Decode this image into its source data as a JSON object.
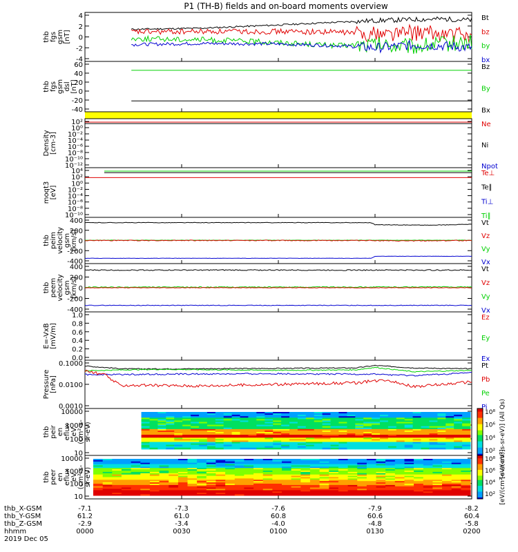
{
  "title": "P1 (TH-B) fields and on-board moments overview",
  "colors": {
    "black": "#000000",
    "red": "#e00000",
    "green": "#00d000",
    "blue": "#0000d0",
    "yellow": "#ffff00",
    "bright_green": "#00e000"
  },
  "chart_data": [
    {
      "type": "line",
      "ylabel_lines": [
        "thb",
        "fgs",
        "gsm",
        "[nT]"
      ],
      "yticks": [
        "4",
        "2",
        "0",
        "-2",
        "-4"
      ],
      "ylim": [
        -4,
        4
      ],
      "legend": [
        {
          "label": "Bt",
          "color": "#000000"
        },
        {
          "label": "bz",
          "color": "#e00000"
        },
        {
          "label": "by",
          "color": "#00d000"
        },
        {
          "label": "bx",
          "color": "#0000d0"
        }
      ],
      "series": [
        {
          "name": "Bt",
          "color": "#000000",
          "x": [
            0.12,
            0.3,
            0.5,
            0.65,
            0.75,
            0.85,
            0.92,
            1.0
          ],
          "y": [
            1.4,
            1.6,
            2.2,
            2.7,
            3.0,
            3.2,
            3.3,
            3.1
          ],
          "noise": 0.15
        },
        {
          "name": "bz",
          "color": "#e00000",
          "x": [
            0.12,
            0.3,
            0.5,
            0.65,
            0.75,
            0.85,
            0.92,
            1.0
          ],
          "y": [
            0.9,
            1.0,
            1.0,
            0.9,
            0.6,
            0.8,
            0.5,
            0.3
          ],
          "noise": 0.5
        },
        {
          "name": "by",
          "color": "#00d000",
          "x": [
            0.12,
            0.3,
            0.5,
            0.65,
            0.75,
            0.85,
            0.92,
            1.0
          ],
          "y": [
            -0.3,
            -0.5,
            -1.0,
            -1.6,
            -1.5,
            -1.8,
            -1.3,
            -1.0
          ],
          "noise": 0.5
        },
        {
          "name": "bx",
          "color": "#0000d0",
          "x": [
            0.12,
            0.3,
            0.5,
            0.65,
            0.75,
            0.85,
            0.92,
            1.0
          ],
          "y": [
            -1.4,
            -1.2,
            -1.3,
            -1.6,
            -2.0,
            -1.5,
            -1.6,
            -2.0
          ],
          "noise": 0.3
        }
      ]
    },
    {
      "type": "line",
      "ylabel_lines": [
        "thb",
        "fgs",
        "gsm",
        "dsl",
        "[nT]"
      ],
      "yticks": [
        "60",
        "40",
        "20",
        "0",
        "-20",
        "-40"
      ],
      "ylim": [
        -45,
        65
      ],
      "legend": [
        {
          "label": "Bz",
          "color": "#000000"
        },
        {
          "label": "By",
          "color": "#00d000"
        },
        {
          "label": "Bx",
          "color": "#000000"
        }
      ],
      "series": [
        {
          "name": "By",
          "color": "#00d000",
          "x": [
            0.12,
            1.0
          ],
          "y": [
            50,
            50
          ],
          "noise": 0.0
        },
        {
          "name": "Bx",
          "color": "#000000",
          "x": [
            0.12,
            1.0
          ],
          "y": [
            -25,
            -25
          ],
          "noise": 0.0
        }
      ]
    },
    {
      "type": "line",
      "ylabel_lines": [
        "Density",
        "[cm-3]"
      ],
      "yticks": [
        "10²",
        "10⁰",
        "10⁻²",
        "10⁻⁴",
        "10⁻⁶",
        "10⁻⁸",
        "10⁻¹⁰",
        "10⁻¹²"
      ],
      "ylim": [
        0,
        1
      ],
      "legend": [
        {
          "label": "Ne",
          "color": "#e00000"
        },
        {
          "label": "Ni",
          "color": "#000000"
        },
        {
          "label": "Npot",
          "color": "#0000d0"
        }
      ],
      "series": [
        {
          "name": "Ne",
          "color": "#e00000",
          "x": [
            0,
            1.0
          ],
          "y": [
            0.93,
            0.93
          ],
          "noise": 0.0
        },
        {
          "name": "Ni",
          "color": "#000000",
          "x": [
            0,
            1.0
          ],
          "y": [
            0.9,
            0.9
          ],
          "noise": 0.0
        }
      ]
    },
    {
      "type": "line",
      "ylabel_lines": [
        "moqt3",
        "[eV]"
      ],
      "yticks": [
        "10⁴",
        "10²",
        "10⁰",
        "10⁻²",
        "10⁻⁴",
        "10⁻⁶",
        "10⁻⁸",
        "10⁻¹⁰"
      ],
      "ylim": [
        0,
        1
      ],
      "legend": [
        {
          "label": "Te⊥",
          "color": "#e00000"
        },
        {
          "label": "Te∥",
          "color": "#000000"
        },
        {
          "label": "Ti⊥",
          "color": "#0000d0"
        },
        {
          "label": "Ti∥",
          "color": "#00d000"
        }
      ],
      "series": [
        {
          "name": "Ti∥",
          "color": "#00d000",
          "x": [
            0.05,
            1.0
          ],
          "y": [
            0.93,
            0.93
          ],
          "noise": 0.0
        },
        {
          "name": "Te∥",
          "color": "#000000",
          "x": [
            0.05,
            1.0
          ],
          "y": [
            0.9,
            0.9
          ],
          "noise": 0.0
        },
        {
          "name": "Te⊥",
          "color": "#e00000",
          "x": [
            0,
            1.0
          ],
          "y": [
            0.8,
            0.8
          ],
          "noise": 0.0
        }
      ]
    },
    {
      "type": "line",
      "ylabel_lines": [
        "thb",
        "peim",
        "velocity",
        "gsm",
        "[km/s]"
      ],
      "yticks": [
        "400",
        "200",
        "0",
        "-200",
        "-400"
      ],
      "ylim": [
        -400,
        400
      ],
      "legend": [
        {
          "label": "Vt",
          "color": "#000000"
        },
        {
          "label": "Vz",
          "color": "#e00000"
        },
        {
          "label": "Vy",
          "color": "#00d000"
        },
        {
          "label": "Vx",
          "color": "#0000d0"
        }
      ],
      "series": [
        {
          "name": "Vt",
          "color": "#000000",
          "x": [
            0,
            0.74,
            0.75,
            0.9,
            1.0
          ],
          "y": [
            350,
            350,
            310,
            300,
            320
          ],
          "noise": 5
        },
        {
          "name": "Vy",
          "color": "#00d000",
          "x": [
            0,
            1.0
          ],
          "y": [
            5,
            5
          ],
          "noise": 3
        },
        {
          "name": "Vz",
          "color": "#e00000",
          "x": [
            0,
            0.74,
            0.8,
            0.9,
            1.0
          ],
          "y": [
            0,
            0,
            -10,
            -5,
            0
          ],
          "noise": 8
        },
        {
          "name": "Vx",
          "color": "#0000d0",
          "x": [
            0,
            0.74,
            0.75,
            1.0
          ],
          "y": [
            -350,
            -350,
            -310,
            -310
          ],
          "noise": 3
        }
      ]
    },
    {
      "type": "line",
      "ylabel_lines": [
        "thb",
        "peem",
        "velocity",
        "gsm",
        "[km/s]"
      ],
      "yticks": [
        "400",
        "200",
        "0",
        "-200",
        "-400"
      ],
      "ylim": [
        -400,
        400
      ],
      "legend": [
        {
          "label": "Vt",
          "color": "#000000"
        },
        {
          "label": "Vz",
          "color": "#e00000"
        },
        {
          "label": "Vy",
          "color": "#00d000"
        },
        {
          "label": "Vx",
          "color": "#0000d0"
        }
      ],
      "series": [
        {
          "name": "Vt",
          "color": "#000000",
          "x": [
            0,
            1.0
          ],
          "y": [
            330,
            330
          ],
          "noise": 10
        },
        {
          "name": "Vy",
          "color": "#00d000",
          "x": [
            0,
            1.0
          ],
          "y": [
            10,
            15
          ],
          "noise": 8
        },
        {
          "name": "Vz",
          "color": "#e00000",
          "x": [
            0,
            1.0
          ],
          "y": [
            0,
            0
          ],
          "noise": 5
        },
        {
          "name": "Vx",
          "color": "#0000d0",
          "x": [
            0,
            1.0
          ],
          "y": [
            -330,
            -330
          ],
          "noise": 6
        }
      ]
    },
    {
      "type": "line",
      "ylabel_lines": [
        "E=-VxB",
        "[mV/m]"
      ],
      "yticks": [
        "1.0",
        "0.8",
        "0.6",
        "0.4",
        "0.2",
        "0.0"
      ],
      "ylim": [
        0,
        1
      ],
      "legend": [
        {
          "label": "Ez",
          "color": "#e00000"
        },
        {
          "label": "Ey",
          "color": "#00d000"
        },
        {
          "label": "Ex",
          "color": "#0000d0"
        }
      ],
      "series": []
    },
    {
      "type": "line",
      "ylabel_lines": [
        "Pressure",
        "[nPa]"
      ],
      "yticks": [
        "0.1000",
        "0.0100",
        "0.0010"
      ],
      "ylim": [
        0,
        1
      ],
      "legend": [
        {
          "label": "Pt",
          "color": "#000000"
        },
        {
          "label": "Pb",
          "color": "#e00000"
        },
        {
          "label": "Pe",
          "color": "#00d000"
        },
        {
          "label": "Pi",
          "color": "#0000d0"
        }
      ],
      "series": [
        {
          "name": "Pt",
          "color": "#000000",
          "x": [
            0,
            0.1,
            0.2,
            0.5,
            0.7,
            0.75,
            0.85,
            1.0
          ],
          "y": [
            0.88,
            0.82,
            0.82,
            0.83,
            0.84,
            0.89,
            0.84,
            0.82
          ],
          "noise": 0.01
        },
        {
          "name": "Pe",
          "color": "#00d000",
          "x": [
            0,
            0.1,
            0.2,
            0.5,
            0.7,
            0.75,
            0.85,
            1.0
          ],
          "y": [
            0.78,
            0.8,
            0.81,
            0.79,
            0.8,
            0.85,
            0.76,
            0.79
          ],
          "noise": 0.01
        },
        {
          "name": "Pi",
          "color": "#0000d0",
          "x": [
            0,
            0.2,
            0.5,
            0.7,
            0.75,
            0.85,
            1.0
          ],
          "y": [
            0.7,
            0.71,
            0.72,
            0.71,
            0.71,
            0.68,
            0.74
          ],
          "noise": 0.015
        },
        {
          "name": "Pb",
          "color": "#e00000",
          "x": [
            0,
            0.05,
            0.09,
            0.12,
            0.3,
            0.5,
            0.7,
            0.78,
            0.85,
            1.0
          ],
          "y": [
            0.78,
            0.7,
            0.48,
            0.48,
            0.47,
            0.5,
            0.53,
            0.6,
            0.45,
            0.55
          ],
          "noise": 0.03
        }
      ]
    },
    {
      "type": "heatmap",
      "ylabel_lines": [
        "thb",
        "peir",
        "en",
        "eflux",
        "eV",
        "(cm²-s-",
        "sr-eV)"
      ],
      "yticks": [
        "10000",
        "1000",
        "100",
        "10"
      ],
      "colorbar_labels": [
        "10⁸",
        "10⁶",
        "10⁴",
        "10²"
      ],
      "colorbar_title": "[eV/(cm²-s-sr-eV)] (All Qs)",
      "x_start": 0.11
    },
    {
      "type": "heatmap",
      "ylabel_lines": [
        "thb",
        "peer",
        "en",
        "eflux",
        "eV",
        "(cm²-s-",
        "sr-eV)"
      ],
      "yticks": [
        "10000",
        "1000",
        "100",
        "10"
      ],
      "colorbar_labels": [
        "10⁸",
        "10⁶",
        "10⁴",
        "10²"
      ],
      "colorbar_title": "[eV/(cm²-s-sr-eV)]",
      "x_start": 0.0
    }
  ],
  "x_axis": {
    "row_labels": [
      "thb_X-GSM",
      "thb_Y-GSM",
      "thb_Z-GSM",
      "hhmm",
      "2019 Dec 05"
    ],
    "columns": [
      {
        "x": 0.0,
        "vals": [
          "-7.1",
          "61.2",
          "-2.9",
          "0000"
        ]
      },
      {
        "x": 0.25,
        "vals": [
          "-7.3",
          "61.0",
          "-3.4",
          "0030"
        ]
      },
      {
        "x": 0.5,
        "vals": [
          "-7.6",
          "60.8",
          "-4.0",
          "0100"
        ]
      },
      {
        "x": 0.75,
        "vals": [
          "-7.9",
          "60.6",
          "-4.8",
          "0130"
        ]
      },
      {
        "x": 1.0,
        "vals": [
          "-8.2",
          "60.4",
          "-5.8",
          "0200"
        ]
      }
    ]
  }
}
